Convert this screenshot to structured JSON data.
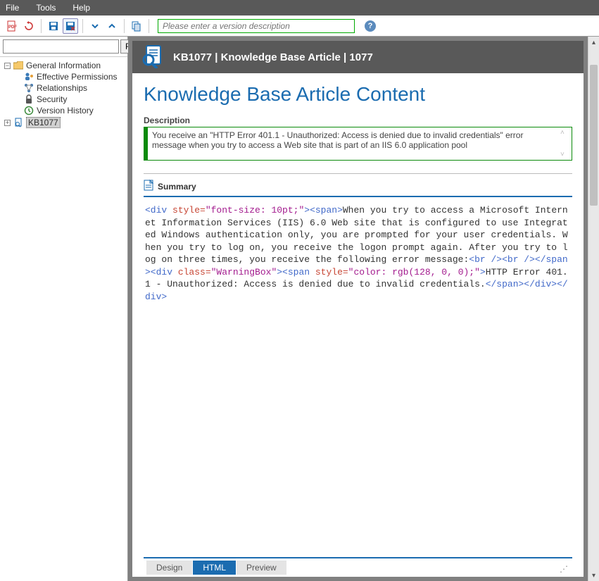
{
  "menu": {
    "file": "File",
    "tools": "Tools",
    "help": "Help"
  },
  "toolbar": {
    "version_placeholder": "Please enter a version description"
  },
  "sidebar": {
    "find_label": "Find",
    "root": "General Information",
    "items": [
      "Effective Permissions",
      "Relationships",
      "Security",
      "Version History"
    ],
    "selected": "KB1077"
  },
  "header": {
    "title": "KB1077 | Knowledge Base Article | 1077"
  },
  "page": {
    "title": "Knowledge Base Article Content",
    "desc_label": "Description",
    "description": "You receive an \"HTTP Error 401.1 - Unauthorized: Access is denied due to invalid credentials\" error message when you try to access a Web site that is part of an IIS 6.0 application pool",
    "summary_label": "Summary"
  },
  "code": {
    "segments": [
      {
        "t": "tag",
        "v": "<div "
      },
      {
        "t": "attr",
        "v": "style="
      },
      {
        "t": "str",
        "v": "\"font-size: 10pt;\""
      },
      {
        "t": "tag",
        "v": "><span>"
      },
      {
        "t": "txt",
        "v": "When you try to access a Microsoft Internet Information Services (IIS) 6.0 Web site that is configured to use Integrated Windows authentication only, you are prompted for your user credentials. When you try to log on, you receive the logon prompt again. After you try to log on three times, you receive the following error message:"
      },
      {
        "t": "tag",
        "v": "<br /><br /></span><div "
      },
      {
        "t": "attr",
        "v": "class="
      },
      {
        "t": "str",
        "v": "\"WarningBox\""
      },
      {
        "t": "tag",
        "v": "><span "
      },
      {
        "t": "attr",
        "v": "style="
      },
      {
        "t": "str",
        "v": "\"color: rgb(128, 0, 0);\""
      },
      {
        "t": "tag",
        "v": ">"
      },
      {
        "t": "txt",
        "v": "HTTP Error 401.1 - Unauthorized: Access is denied due to invalid credentials."
      },
      {
        "t": "tag",
        "v": "</span></div></div>"
      }
    ]
  },
  "tabs": {
    "design": "Design",
    "html": "HTML",
    "preview": "Preview"
  }
}
